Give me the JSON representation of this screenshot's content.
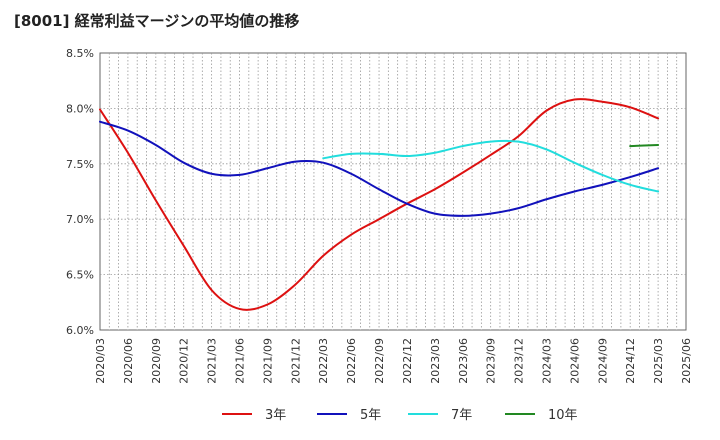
{
  "chart_data": {
    "type": "line",
    "title": "[8001]  経常利益マージンの平均値の推移",
    "xlabel": "",
    "ylabel": "",
    "y_unit": "%",
    "ylim": [
      6.0,
      8.5
    ],
    "yticks": [
      6.0,
      6.5,
      7.0,
      7.5,
      8.0,
      8.5
    ],
    "ytick_labels": [
      "6.0%",
      "6.5%",
      "7.0%",
      "7.5%",
      "8.0%",
      "8.5%"
    ],
    "x_range": [
      "2020/03",
      "2025/06"
    ],
    "x_ticks": [
      "2020/03",
      "2020/06",
      "2020/09",
      "2020/12",
      "2021/03",
      "2021/06",
      "2021/09",
      "2021/12",
      "2022/03",
      "2022/06",
      "2022/09",
      "2022/12",
      "2023/03",
      "2023/06",
      "2023/09",
      "2023/12",
      "2024/03",
      "2024/06",
      "2024/09",
      "2024/12",
      "2025/03",
      "2025/06"
    ],
    "grid": true,
    "legend_position": "bottom",
    "series": [
      {
        "name": "3年",
        "color": "#dd1111",
        "points": [
          [
            "2020/03",
            7.99
          ],
          [
            "2020/06",
            7.6
          ],
          [
            "2020/09",
            7.17
          ],
          [
            "2020/12",
            6.76
          ],
          [
            "2021/03",
            6.36
          ],
          [
            "2021/06",
            6.19
          ],
          [
            "2021/09",
            6.23
          ],
          [
            "2021/12",
            6.41
          ],
          [
            "2022/03",
            6.67
          ],
          [
            "2022/06",
            6.86
          ],
          [
            "2022/09",
            7.0
          ],
          [
            "2022/12",
            7.14
          ],
          [
            "2023/03",
            7.27
          ],
          [
            "2023/06",
            7.42
          ],
          [
            "2023/09",
            7.58
          ],
          [
            "2023/12",
            7.75
          ],
          [
            "2024/03",
            7.98
          ],
          [
            "2024/06",
            8.08
          ],
          [
            "2024/09",
            8.06
          ],
          [
            "2024/12",
            8.01
          ],
          [
            "2025/03",
            7.91
          ]
        ]
      },
      {
        "name": "5年",
        "color": "#1111bb",
        "points": [
          [
            "2020/03",
            7.88
          ],
          [
            "2020/06",
            7.8
          ],
          [
            "2020/09",
            7.67
          ],
          [
            "2020/12",
            7.51
          ],
          [
            "2021/03",
            7.41
          ],
          [
            "2021/06",
            7.4
          ],
          [
            "2021/09",
            7.46
          ],
          [
            "2021/12",
            7.52
          ],
          [
            "2022/03",
            7.51
          ],
          [
            "2022/06",
            7.41
          ],
          [
            "2022/09",
            7.27
          ],
          [
            "2022/12",
            7.14
          ],
          [
            "2023/03",
            7.05
          ],
          [
            "2023/06",
            7.03
          ],
          [
            "2023/09",
            7.05
          ],
          [
            "2023/12",
            7.1
          ],
          [
            "2024/03",
            7.18
          ],
          [
            "2024/06",
            7.25
          ],
          [
            "2024/09",
            7.31
          ],
          [
            "2024/12",
            7.38
          ],
          [
            "2025/03",
            7.46
          ]
        ]
      },
      {
        "name": "7年",
        "color": "#22dddd",
        "points": [
          [
            "2022/03",
            7.55
          ],
          [
            "2022/06",
            7.59
          ],
          [
            "2022/09",
            7.59
          ],
          [
            "2022/12",
            7.57
          ],
          [
            "2023/03",
            7.6
          ],
          [
            "2023/06",
            7.66
          ],
          [
            "2023/09",
            7.7
          ],
          [
            "2023/12",
            7.7
          ],
          [
            "2024/03",
            7.63
          ],
          [
            "2024/06",
            7.51
          ],
          [
            "2024/09",
            7.4
          ],
          [
            "2024/12",
            7.31
          ],
          [
            "2025/03",
            7.25
          ]
        ]
      },
      {
        "name": "10年",
        "color": "#228822",
        "points": [
          [
            "2024/12",
            7.66
          ],
          [
            "2025/03",
            7.67
          ]
        ]
      }
    ]
  }
}
